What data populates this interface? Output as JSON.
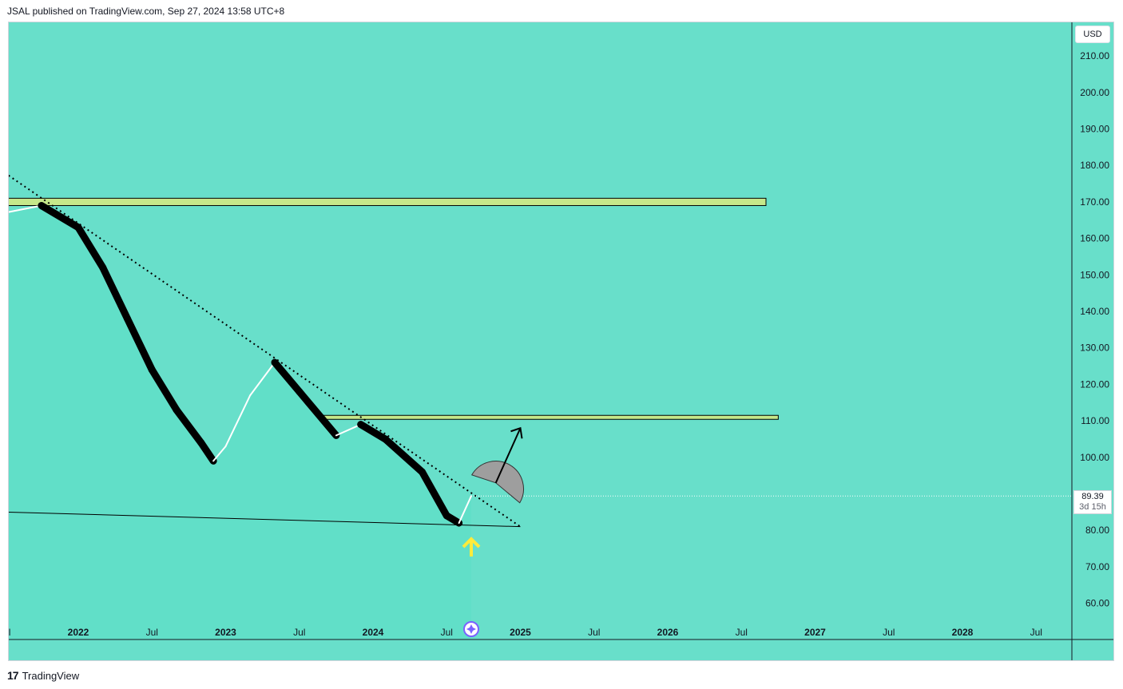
{
  "header": {
    "published": "JSAL published on TradingView.com, Sep 27, 2024 13:58 UTC+8"
  },
  "footer": {
    "brand": "TradingView",
    "logo_text": "17"
  },
  "price_axis": {
    "currency": "USD",
    "last_price": "89.39",
    "countdown": "3d 15h"
  },
  "colors": {
    "background": "#68dfca",
    "resistance_zone": "#c6e88a",
    "bars": "#000000",
    "up_candle": "#ffffff",
    "arrow": "#ffeb3b"
  },
  "chart_data": {
    "type": "line",
    "title": "",
    "xlabel": "",
    "ylabel": "",
    "y_ticks": [
      210,
      200,
      190,
      180,
      170,
      160,
      150,
      140,
      130,
      120,
      110,
      100,
      80,
      70,
      60
    ],
    "y_tick_labels": [
      "210.00",
      "200.00",
      "190.00",
      "180.00",
      "170.00",
      "160.00",
      "150.00",
      "140.00",
      "130.00",
      "120.00",
      "110.00",
      "100.00",
      "80.00",
      "70.00",
      "60.00"
    ],
    "ylim": [
      51,
      218
    ],
    "x_tick_labels": [
      "Jul",
      "2022",
      "Jul",
      "2023",
      "Jul",
      "2024",
      "Jul",
      "2025",
      "Jul",
      "2026",
      "Jul",
      "2027",
      "Jul",
      "2028",
      "Jul"
    ],
    "x_range": [
      "2021-07",
      "2028-07"
    ],
    "series": [
      {
        "values": [
          [
            "2021-07",
            167
          ],
          [
            "2021-10",
            169
          ],
          [
            "2022-01",
            163
          ],
          [
            "2022-03",
            152
          ],
          [
            "2022-05",
            138
          ],
          [
            "2022-07",
            124
          ],
          [
            "2022-09",
            113
          ],
          [
            "2022-11",
            104
          ],
          [
            "2022-12",
            99
          ],
          [
            "2023-01",
            103
          ],
          [
            "2023-03",
            117
          ],
          [
            "2023-05",
            126
          ],
          [
            "2023-07",
            118
          ],
          [
            "2023-10",
            106
          ],
          [
            "2023-12",
            109
          ],
          [
            "2024-02",
            105
          ],
          [
            "2024-05",
            96
          ],
          [
            "2024-07",
            84
          ],
          [
            "2024-08",
            82
          ],
          [
            "2024-09",
            89.39
          ]
        ]
      }
    ],
    "annotations": {
      "resistance_zones": [
        {
          "from": "2021-07",
          "to": "2026-09",
          "low": 169,
          "high": 171
        },
        {
          "from": "2023-09",
          "to": "2026-10",
          "low": 110.5,
          "high": 111.5
        }
      ],
      "descending_trendline": {
        "start": [
          "2021-07",
          178
        ],
        "end": [
          "2025-01",
          81
        ]
      },
      "support_line": {
        "start": [
          "2021-07",
          85
        ],
        "end": [
          "2025-01",
          81
        ]
      },
      "projection_arrow": {
        "start": [
          "2024-11",
          93
        ],
        "end": [
          "2025-01",
          108
        ]
      },
      "bottom_marker": "2024-09"
    }
  }
}
